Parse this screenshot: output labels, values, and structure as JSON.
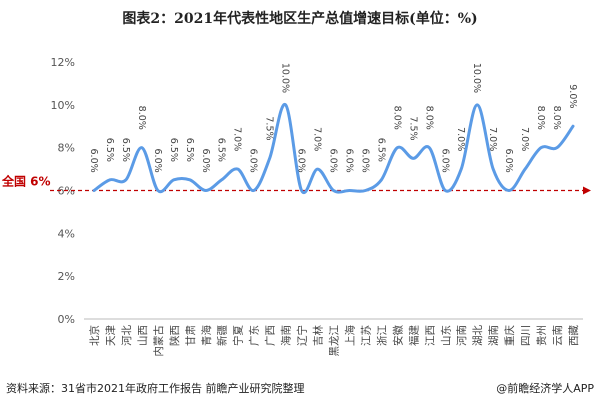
{
  "title": "图表2：2021年代表性地区生产总值增速目标(单位：%)",
  "footer": {
    "source": "资料来源：31省市2021年政府工作报告 前瞻产业研究院整理",
    "credit": "@前瞻经济学人APP"
  },
  "chart_data": {
    "type": "line",
    "title": "图表2：2021年代表性地区生产总值增速目标(单位：%)",
    "categories": [
      "北京",
      "天津",
      "河北",
      "山西",
      "内蒙古",
      "陕西",
      "甘肃",
      "青海",
      "新疆",
      "宁夏",
      "广东",
      "广西",
      "海南",
      "辽宁",
      "吉林",
      "黑龙江",
      "上海",
      "江苏",
      "浙江",
      "安徽",
      "福建",
      "江西",
      "山东",
      "河南",
      "湖北",
      "湖南",
      "重庆",
      "四川",
      "贵州",
      "云南",
      "西藏"
    ],
    "values": [
      6.0,
      6.5,
      6.5,
      8.0,
      6.0,
      6.5,
      6.5,
      6.0,
      6.5,
      7.0,
      6.0,
      7.5,
      10.0,
      6.0,
      7.0,
      6.0,
      6.0,
      6.0,
      6.5,
      8.0,
      7.5,
      8.0,
      6.0,
      7.0,
      10.0,
      7.0,
      6.0,
      7.0,
      8.0,
      8.0,
      9.0
    ],
    "ylim": [
      0,
      12
    ],
    "yticks": [
      "0%",
      "2%",
      "4%",
      "6%",
      "8%",
      "10%",
      "12%"
    ],
    "grid": false,
    "reference_line": {
      "label": "全国 6%",
      "value": 6,
      "color": "#c00000"
    },
    "line_color": "#5b9be6"
  }
}
